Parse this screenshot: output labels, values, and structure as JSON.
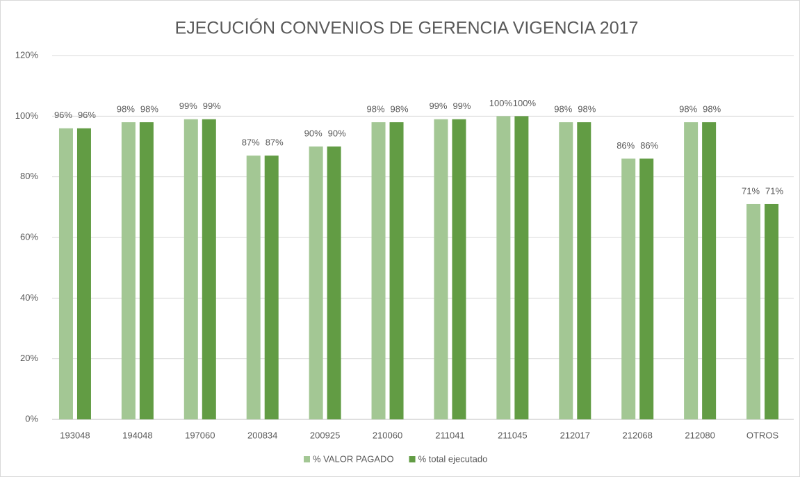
{
  "chart_data": {
    "type": "bar",
    "title": "EJECUCIÓN CONVENIOS DE GERENCIA VIGENCIA 2017",
    "categories": [
      "193048",
      "194048",
      "197060",
      "200834",
      "200925",
      "210060",
      "211041",
      "211045",
      "212017",
      "212068",
      "212080",
      "OTROS"
    ],
    "series": [
      {
        "name": "% VALOR PAGADO",
        "color": "#a3c794",
        "values": [
          96,
          98,
          99,
          87,
          90,
          98,
          99,
          100,
          98,
          86,
          98,
          71
        ],
        "value_labels": [
          "96%",
          "98%",
          "99%",
          "87%",
          "90%",
          "98%",
          "99%",
          "100%",
          "98%",
          "86%",
          "98%",
          "71%"
        ]
      },
      {
        "name": "% total ejecutado",
        "color": "#629c44",
        "values": [
          96,
          98,
          99,
          87,
          90,
          98,
          99,
          100,
          98,
          86,
          98,
          71
        ],
        "value_labels": [
          "96%",
          "98%",
          "99%",
          "87%",
          "90%",
          "98%",
          "99%",
          "100%",
          "98%",
          "86%",
          "98%",
          "71%"
        ]
      }
    ],
    "ylim": [
      0,
      120
    ],
    "yticks": [
      {
        "value": 0,
        "label": "0%"
      },
      {
        "value": 20,
        "label": "20%"
      },
      {
        "value": 40,
        "label": "40%"
      },
      {
        "value": 60,
        "label": "60%"
      },
      {
        "value": 80,
        "label": "80%"
      },
      {
        "value": 100,
        "label": "100%"
      },
      {
        "value": 120,
        "label": "120%"
      }
    ],
    "grid": true,
    "legend": "bottom"
  }
}
